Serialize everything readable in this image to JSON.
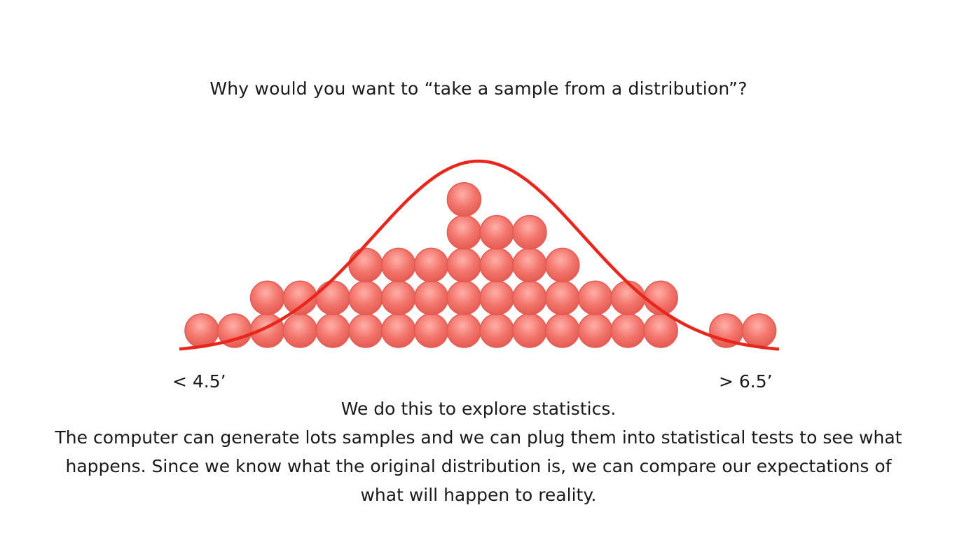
{
  "slide": {
    "question": "Why would you want to “take a sample from a distribution”?",
    "answer_lines": [
      "We do this to explore statistics.",
      "The computer can generate lots samples and we can plug them into statistical tests to see what",
      "happens. Since we know what the original distribution is, we can compare our expectations of",
      "what will happen to reality."
    ]
  },
  "diagram": {
    "left_label": "< 4.5’",
    "right_label": "> 6.5’",
    "column_counts": [
      1,
      1,
      2,
      2,
      2,
      3,
      3,
      3,
      5,
      4,
      4,
      3,
      2,
      2,
      2,
      0,
      1,
      1
    ],
    "dot_color": "#f0716a",
    "curve_color": "#e8261c"
  }
}
